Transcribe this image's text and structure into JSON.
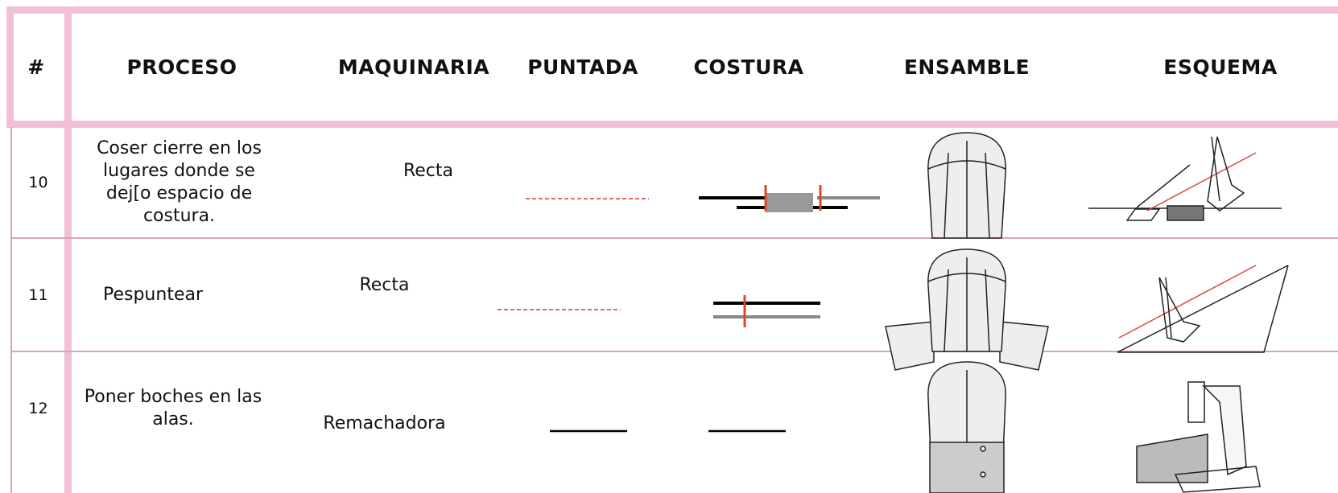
{
  "table": {
    "header": [
      "#",
      "PROCESO",
      "MAQUINARIA",
      "PUNTADA",
      "COSTURA",
      "ENSAMBLE",
      "ESQUEMA"
    ],
    "rows": [
      [
        "10",
        "Coser cierre en los lugares donde se dej[o espacio de costura.",
        "Recta"
      ],
      [
        "11",
        "Pespuntear",
        "Recta"
      ],
      [
        "12",
        "Poner boches en las alas.",
        "Remachadora"
      ]
    ]
  }
}
